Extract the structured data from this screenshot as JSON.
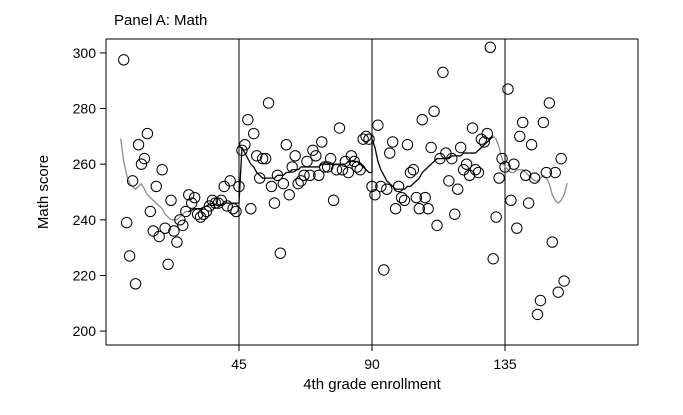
{
  "chart_data": {
    "type": "scatter",
    "title": "Panel A: Math",
    "xlabel": "4th grade enrollment",
    "ylabel": "Math score",
    "xlim": [
      0,
      180
    ],
    "ylim": [
      195,
      305
    ],
    "xticks": [
      45,
      90,
      135
    ],
    "yticks": [
      200,
      220,
      240,
      260,
      280,
      300
    ],
    "vlines": [
      45,
      90,
      135
    ],
    "grid": false,
    "colors": {
      "points": "#000000",
      "line_black": "#000000",
      "line_gray": "#8c8c8c"
    },
    "points": [
      [
        6,
        297.5
      ],
      [
        7,
        239
      ],
      [
        8,
        227
      ],
      [
        9,
        254
      ],
      [
        10,
        217
      ],
      [
        11,
        267
      ],
      [
        12,
        260
      ],
      [
        13,
        262
      ],
      [
        14,
        271
      ],
      [
        15,
        243
      ],
      [
        16,
        236
      ],
      [
        17,
        252
      ],
      [
        18,
        234
      ],
      [
        19,
        258
      ],
      [
        20,
        237
      ],
      [
        21,
        224
      ],
      [
        22,
        247
      ],
      [
        23,
        236
      ],
      [
        24,
        232
      ],
      [
        25,
        240
      ],
      [
        26,
        238
      ],
      [
        27,
        243
      ],
      [
        28,
        249
      ],
      [
        29,
        246
      ],
      [
        30,
        248
      ],
      [
        31,
        242
      ],
      [
        32,
        241
      ],
      [
        33,
        242
      ],
      [
        34,
        243
      ],
      [
        35,
        245
      ],
      [
        36,
        247
      ],
      [
        37,
        246
      ],
      [
        38,
        246
      ],
      [
        39,
        247
      ],
      [
        40,
        252
      ],
      [
        41,
        245
      ],
      [
        42,
        254
      ],
      [
        43,
        244
      ],
      [
        44,
        243
      ],
      [
        45,
        252
      ],
      [
        46,
        265
      ],
      [
        47,
        267
      ],
      [
        48,
        276
      ],
      [
        49,
        244
      ],
      [
        50,
        271
      ],
      [
        51,
        263
      ],
      [
        52,
        255
      ],
      [
        53,
        262
      ],
      [
        54,
        262
      ],
      [
        55,
        282
      ],
      [
        56,
        252
      ],
      [
        57,
        246
      ],
      [
        58,
        256
      ],
      [
        59,
        228
      ],
      [
        60,
        253
      ],
      [
        61,
        267
      ],
      [
        62,
        249
      ],
      [
        63,
        259
      ],
      [
        64,
        263
      ],
      [
        65,
        253
      ],
      [
        66,
        254
      ],
      [
        67,
        256
      ],
      [
        68,
        261
      ],
      [
        69,
        256
      ],
      [
        70,
        265
      ],
      [
        71,
        263
      ],
      [
        72,
        256
      ],
      [
        73,
        268
      ],
      [
        74,
        259
      ],
      [
        75,
        259
      ],
      [
        76,
        262
      ],
      [
        77,
        247
      ],
      [
        78,
        258
      ],
      [
        79,
        273
      ],
      [
        80,
        258
      ],
      [
        81,
        261
      ],
      [
        82,
        257
      ],
      [
        83,
        263
      ],
      [
        84,
        261
      ],
      [
        85,
        259
      ],
      [
        86,
        258
      ],
      [
        87,
        269
      ],
      [
        88,
        270
      ],
      [
        89,
        269
      ],
      [
        90,
        252
      ],
      [
        91,
        249
      ],
      [
        92,
        274
      ],
      [
        93,
        252
      ],
      [
        94,
        222
      ],
      [
        95,
        251
      ],
      [
        96,
        264
      ],
      [
        97,
        268
      ],
      [
        98,
        244
      ],
      [
        99,
        252
      ],
      [
        100,
        248
      ],
      [
        101,
        247
      ],
      [
        102,
        267
      ],
      [
        103,
        257
      ],
      [
        104,
        258
      ],
      [
        105,
        248
      ],
      [
        106,
        244
      ],
      [
        107,
        276
      ],
      [
        108,
        248
      ],
      [
        109,
        244
      ],
      [
        110,
        266
      ],
      [
        111,
        279
      ],
      [
        112,
        238
      ],
      [
        113,
        262
      ],
      [
        114,
        293
      ],
      [
        115,
        264
      ],
      [
        116,
        254
      ],
      [
        117,
        262
      ],
      [
        118,
        242
      ],
      [
        119,
        251
      ],
      [
        120,
        266
      ],
      [
        121,
        258
      ],
      [
        122,
        260
      ],
      [
        123,
        256
      ],
      [
        124,
        273
      ],
      [
        125,
        258
      ],
      [
        126,
        257
      ],
      [
        127,
        269
      ],
      [
        128,
        268
      ],
      [
        129,
        271
      ],
      [
        130,
        302
      ],
      [
        131,
        226
      ],
      [
        132,
        241
      ],
      [
        133,
        255
      ],
      [
        134,
        262
      ],
      [
        135,
        259
      ],
      [
        136,
        287
      ],
      [
        137,
        247
      ],
      [
        138,
        260
      ],
      [
        139,
        237
      ],
      [
        140,
        270
      ],
      [
        141,
        275
      ],
      [
        142,
        256
      ],
      [
        143,
        246
      ],
      [
        144,
        267
      ],
      [
        145,
        255
      ],
      [
        146,
        206
      ],
      [
        147,
        211
      ],
      [
        148,
        275
      ],
      [
        149,
        257
      ],
      [
        150,
        282
      ],
      [
        151,
        232
      ],
      [
        152,
        257
      ],
      [
        153,
        214
      ],
      [
        154,
        262
      ],
      [
        155,
        218
      ]
    ],
    "fit_lines": [
      {
        "color": "gray",
        "points": [
          [
            5,
            269
          ],
          [
            6,
            261
          ],
          [
            7,
            256
          ],
          [
            8,
            253
          ],
          [
            9,
            252
          ],
          [
            10,
            251
          ],
          [
            11,
            252
          ],
          [
            12,
            253
          ],
          [
            13,
            251
          ],
          [
            14,
            249
          ],
          [
            15,
            248
          ],
          [
            16,
            247
          ],
          [
            17,
            246
          ],
          [
            18,
            245
          ],
          [
            19,
            244
          ],
          [
            20,
            242
          ],
          [
            21,
            241
          ],
          [
            22,
            240
          ],
          [
            23,
            240
          ],
          [
            24,
            240
          ],
          [
            25,
            241
          ],
          [
            26,
            242
          ],
          [
            27,
            243
          ],
          [
            28,
            243
          ]
        ]
      },
      {
        "color": "black",
        "points": [
          [
            28,
            243
          ],
          [
            30,
            244
          ],
          [
            32,
            244
          ],
          [
            34,
            245
          ],
          [
            36,
            246
          ],
          [
            38,
            245
          ],
          [
            40,
            246
          ],
          [
            42,
            246
          ],
          [
            44,
            246
          ],
          [
            45,
            246
          ],
          [
            46,
            266
          ],
          [
            47,
            264
          ],
          [
            48,
            262
          ],
          [
            49,
            260
          ],
          [
            50,
            259
          ],
          [
            51,
            257
          ],
          [
            52,
            256
          ],
          [
            53,
            255
          ],
          [
            54,
            255
          ],
          [
            55,
            255
          ],
          [
            56,
            255
          ],
          [
            57,
            255
          ],
          [
            58,
            256
          ],
          [
            59,
            256
          ],
          [
            60,
            256
          ],
          [
            61,
            257
          ],
          [
            62,
            257
          ],
          [
            63,
            258
          ],
          [
            64,
            258
          ],
          [
            65,
            258
          ],
          [
            66,
            259
          ],
          [
            67,
            259
          ],
          [
            68,
            259
          ],
          [
            69,
            259
          ],
          [
            70,
            259
          ],
          [
            71,
            259
          ],
          [
            72,
            259
          ],
          [
            73,
            260
          ],
          [
            74,
            260
          ],
          [
            75,
            260
          ],
          [
            76,
            260
          ],
          [
            77,
            260
          ],
          [
            78,
            260
          ],
          [
            79,
            260
          ],
          [
            80,
            260
          ],
          [
            81,
            260
          ],
          [
            82,
            261
          ],
          [
            83,
            261
          ],
          [
            84,
            261
          ],
          [
            85,
            261
          ],
          [
            86,
            260
          ],
          [
            87,
            259
          ],
          [
            88,
            258
          ],
          [
            89,
            257
          ],
          [
            90,
            257
          ],
          [
            90,
            269
          ],
          [
            91,
            266
          ],
          [
            92,
            261
          ],
          [
            93,
            258
          ],
          [
            94,
            256
          ],
          [
            95,
            254
          ],
          [
            96,
            253
          ],
          [
            97,
            252
          ],
          [
            98,
            251
          ],
          [
            99,
            251
          ],
          [
            100,
            251
          ],
          [
            101,
            251
          ],
          [
            102,
            252
          ],
          [
            103,
            252
          ],
          [
            104,
            253
          ],
          [
            105,
            254
          ],
          [
            106,
            255
          ],
          [
            107,
            257
          ],
          [
            108,
            258
          ],
          [
            109,
            259
          ],
          [
            110,
            260
          ],
          [
            111,
            261
          ],
          [
            112,
            262
          ],
          [
            113,
            262
          ],
          [
            114,
            262
          ],
          [
            115,
            262
          ],
          [
            116,
            262
          ],
          [
            117,
            263
          ],
          [
            118,
            263
          ],
          [
            119,
            263
          ],
          [
            120,
            263
          ],
          [
            121,
            264
          ],
          [
            122,
            264
          ],
          [
            123,
            264
          ],
          [
            124,
            264
          ],
          [
            125,
            264
          ],
          [
            126,
            265
          ],
          [
            127,
            266
          ],
          [
            128,
            267
          ],
          [
            129,
            268
          ],
          [
            130,
            269
          ],
          [
            131,
            270
          ]
        ]
      },
      {
        "color": "gray",
        "points": [
          [
            131,
            270
          ],
          [
            132,
            269
          ],
          [
            133,
            266
          ],
          [
            134,
            262
          ],
          [
            135,
            259
          ],
          [
            136,
            258
          ],
          [
            137,
            257
          ],
          [
            138,
            257
          ],
          [
            139,
            258
          ],
          [
            140,
            258
          ],
          [
            141,
            258
          ],
          [
            142,
            257
          ],
          [
            143,
            256
          ],
          [
            144,
            255
          ],
          [
            145,
            254
          ],
          [
            146,
            254
          ],
          [
            147,
            255
          ],
          [
            148,
            256
          ],
          [
            149,
            255
          ],
          [
            150,
            253
          ],
          [
            151,
            249
          ],
          [
            152,
            247
          ],
          [
            153,
            246
          ],
          [
            154,
            247
          ],
          [
            155,
            249
          ],
          [
            156,
            253
          ]
        ]
      }
    ]
  }
}
